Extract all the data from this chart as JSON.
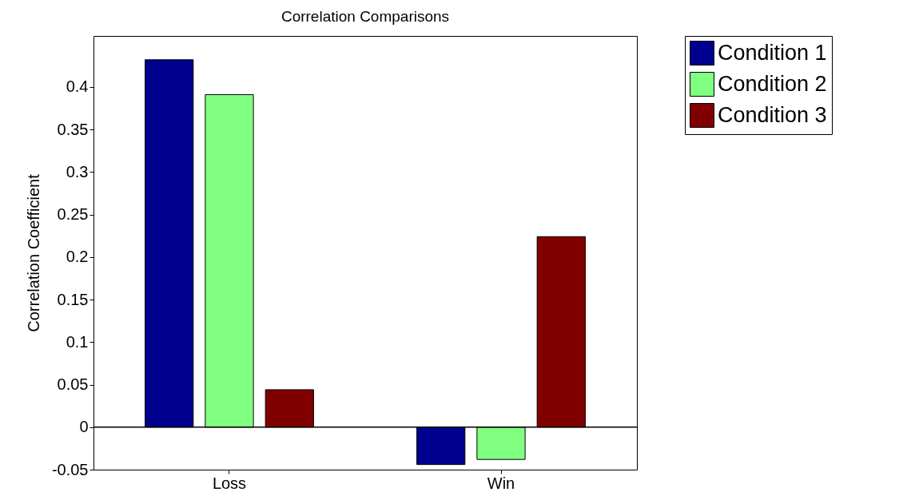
{
  "chart_data": {
    "type": "bar",
    "title": "Correlation Comparisons",
    "ylabel": "Correlation Coefficient",
    "categories": [
      "Loss",
      "Win"
    ],
    "series": [
      {
        "name": "Condition 1",
        "color": "#00008f",
        "values": [
          0.432,
          -0.044
        ]
      },
      {
        "name": "Condition 2",
        "color": "#80ff80",
        "values": [
          0.391,
          -0.038
        ]
      },
      {
        "name": "Condition 3",
        "color": "#800000",
        "values": [
          0.044,
          0.224
        ]
      }
    ],
    "ylim": [
      -0.05,
      0.46
    ],
    "yticks": [
      -0.05,
      0,
      0.05,
      0.1,
      0.15,
      0.2,
      0.25,
      0.3,
      0.35,
      0.4
    ],
    "ref_lines": [
      {
        "axis": "y",
        "value": 0,
        "color": "#000000"
      }
    ],
    "legend": "top right",
    "grid": false
  }
}
